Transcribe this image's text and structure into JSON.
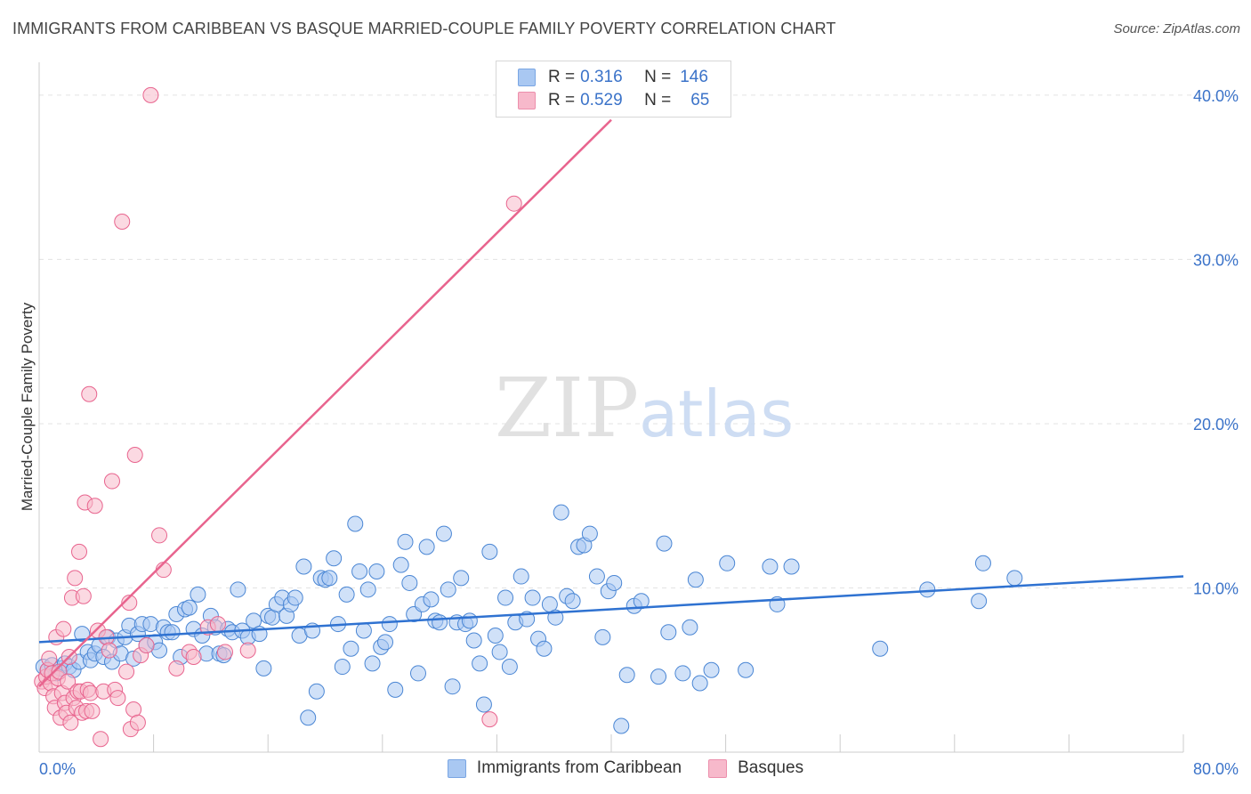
{
  "header": {
    "title": "IMMIGRANTS FROM CARIBBEAN VS BASQUE MARRIED-COUPLE FAMILY POVERTY CORRELATION CHART",
    "source": "Source: ZipAtlas.com"
  },
  "watermark": {
    "zip": "ZIP",
    "atlas": "atlas"
  },
  "legend": {
    "rows": [
      {
        "r_label": "R = ",
        "r_value": "0.316",
        "n_label": "N = ",
        "n_value": "146",
        "color": "#a9c8f2"
      },
      {
        "r_label": "R = ",
        "r_value": "0.529",
        "n_label": "N = ",
        "n_value": "65",
        "color": "#f7b9cb"
      }
    ]
  },
  "bottom_legend": {
    "items": [
      {
        "label": "Immigrants from Caribbean",
        "color": "#a9c8f2"
      },
      {
        "label": "Basques",
        "color": "#f7b9cb"
      }
    ]
  },
  "chart_data": {
    "type": "scatter",
    "title": "IMMIGRANTS FROM CARIBBEAN VS BASQUE MARRIED-COUPLE FAMILY POVERTY CORRELATION CHART",
    "xlabel": "",
    "ylabel": "Married-Couple Family Poverty",
    "xlim": [
      0,
      80
    ],
    "ylim": [
      0,
      42
    ],
    "x_tick_labels": [
      "0.0%",
      "80.0%"
    ],
    "y_ticks": [
      10,
      20,
      30,
      40
    ],
    "y_tick_labels": [
      "10.0%",
      "20.0%",
      "30.0%",
      "40.0%"
    ],
    "grid": true,
    "colors": {
      "blue": "#4a86d4",
      "blue_fill": "#a9c8f2",
      "pink": "#e8648e",
      "pink_fill": "#f7b9cb",
      "tick": "#3b73c9"
    },
    "series": [
      {
        "name": "Immigrants from Caribbean",
        "color": "#4a86d4",
        "trend": {
          "x": [
            0,
            80
          ],
          "y": [
            6.7,
            10.7
          ]
        },
        "points": [
          [
            0.3,
            5.2
          ],
          [
            0.6,
            5.0
          ],
          [
            0.9,
            5.3
          ],
          [
            1.2,
            4.8
          ],
          [
            1.5,
            5.1
          ],
          [
            1.8,
            5.4
          ],
          [
            2.1,
            5.2
          ],
          [
            2.4,
            5.0
          ],
          [
            2.8,
            5.5
          ],
          [
            3.0,
            7.2
          ],
          [
            3.4,
            6.1
          ],
          [
            3.6,
            5.6
          ],
          [
            3.9,
            6.0
          ],
          [
            4.2,
            6.5
          ],
          [
            4.5,
            5.8
          ],
          [
            4.8,
            7.0
          ],
          [
            5.1,
            5.5
          ],
          [
            5.4,
            6.8
          ],
          [
            5.7,
            6.0
          ],
          [
            6.0,
            7.0
          ],
          [
            6.3,
            7.7
          ],
          [
            6.6,
            5.7
          ],
          [
            6.9,
            7.2
          ],
          [
            7.2,
            7.8
          ],
          [
            7.5,
            6.5
          ],
          [
            7.8,
            7.8
          ],
          [
            8.1,
            6.7
          ],
          [
            8.4,
            6.2
          ],
          [
            8.7,
            7.6
          ],
          [
            9.0,
            7.3
          ],
          [
            9.3,
            7.3
          ],
          [
            9.6,
            8.4
          ],
          [
            9.9,
            5.8
          ],
          [
            10.2,
            8.7
          ],
          [
            10.5,
            8.8
          ],
          [
            10.8,
            7.5
          ],
          [
            11.1,
            9.6
          ],
          [
            11.4,
            7.1
          ],
          [
            11.7,
            6.0
          ],
          [
            12.0,
            8.3
          ],
          [
            12.3,
            7.6
          ],
          [
            12.6,
            6.0
          ],
          [
            12.9,
            5.9
          ],
          [
            13.2,
            7.5
          ],
          [
            13.5,
            7.3
          ],
          [
            13.9,
            9.9
          ],
          [
            14.2,
            7.4
          ],
          [
            14.6,
            7.0
          ],
          [
            15.0,
            8.0
          ],
          [
            15.4,
            7.2
          ],
          [
            15.7,
            5.1
          ],
          [
            16.0,
            8.3
          ],
          [
            16.3,
            8.2
          ],
          [
            16.6,
            9.0
          ],
          [
            17.0,
            9.4
          ],
          [
            17.3,
            8.3
          ],
          [
            17.6,
            9.0
          ],
          [
            17.9,
            9.4
          ],
          [
            18.2,
            7.1
          ],
          [
            18.5,
            11.3
          ],
          [
            18.8,
            2.1
          ],
          [
            19.1,
            7.4
          ],
          [
            19.4,
            3.7
          ],
          [
            19.7,
            10.6
          ],
          [
            20.0,
            10.5
          ],
          [
            20.3,
            10.6
          ],
          [
            20.6,
            11.8
          ],
          [
            20.9,
            7.8
          ],
          [
            21.2,
            5.2
          ],
          [
            21.5,
            9.6
          ],
          [
            21.8,
            6.3
          ],
          [
            22.1,
            13.9
          ],
          [
            22.4,
            11.0
          ],
          [
            22.7,
            7.4
          ],
          [
            23.0,
            9.9
          ],
          [
            23.3,
            5.4
          ],
          [
            23.6,
            11.0
          ],
          [
            23.9,
            6.4
          ],
          [
            24.2,
            6.7
          ],
          [
            24.5,
            7.8
          ],
          [
            24.9,
            3.8
          ],
          [
            25.3,
            11.4
          ],
          [
            25.6,
            12.8
          ],
          [
            25.9,
            10.3
          ],
          [
            26.2,
            8.4
          ],
          [
            26.5,
            4.8
          ],
          [
            26.8,
            9.0
          ],
          [
            27.1,
            12.5
          ],
          [
            27.4,
            9.3
          ],
          [
            27.7,
            8.0
          ],
          [
            28.0,
            7.9
          ],
          [
            28.3,
            13.3
          ],
          [
            28.6,
            9.9
          ],
          [
            28.9,
            4.0
          ],
          [
            29.2,
            7.9
          ],
          [
            29.5,
            10.6
          ],
          [
            29.8,
            7.8
          ],
          [
            30.1,
            8.0
          ],
          [
            30.4,
            6.8
          ],
          [
            30.8,
            5.4
          ],
          [
            31.1,
            2.9
          ],
          [
            31.5,
            12.2
          ],
          [
            31.9,
            7.1
          ],
          [
            32.2,
            6.1
          ],
          [
            32.6,
            9.4
          ],
          [
            32.9,
            5.2
          ],
          [
            33.3,
            7.9
          ],
          [
            33.7,
            10.7
          ],
          [
            34.1,
            8.1
          ],
          [
            34.5,
            9.4
          ],
          [
            34.9,
            6.9
          ],
          [
            35.3,
            6.3
          ],
          [
            35.7,
            9.0
          ],
          [
            36.1,
            8.2
          ],
          [
            36.5,
            14.6
          ],
          [
            36.9,
            9.5
          ],
          [
            37.3,
            9.2
          ],
          [
            37.7,
            12.5
          ],
          [
            38.1,
            12.6
          ],
          [
            38.5,
            13.3
          ],
          [
            39.0,
            10.7
          ],
          [
            39.4,
            7.0
          ],
          [
            39.8,
            9.8
          ],
          [
            40.2,
            10.3
          ],
          [
            40.7,
            1.6
          ],
          [
            41.1,
            4.7
          ],
          [
            41.6,
            8.9
          ],
          [
            42.1,
            9.2
          ],
          [
            43.3,
            4.6
          ],
          [
            43.7,
            12.7
          ],
          [
            44.0,
            7.3
          ],
          [
            45.0,
            4.8
          ],
          [
            45.5,
            7.6
          ],
          [
            45.9,
            10.5
          ],
          [
            46.2,
            4.2
          ],
          [
            47.0,
            5.0
          ],
          [
            48.1,
            11.5
          ],
          [
            49.4,
            5.0
          ],
          [
            51.1,
            11.3
          ],
          [
            51.6,
            9.0
          ],
          [
            52.6,
            11.3
          ],
          [
            58.8,
            6.3
          ],
          [
            62.1,
            9.9
          ],
          [
            65.7,
            9.2
          ],
          [
            66.0,
            11.5
          ],
          [
            68.2,
            10.6
          ]
        ]
      },
      {
        "name": "Basques",
        "color": "#e8648e",
        "trend": {
          "x": [
            0,
            40
          ],
          "y": [
            4.0,
            38.5
          ]
        },
        "points": [
          [
            0.2,
            4.3
          ],
          [
            0.4,
            3.9
          ],
          [
            0.5,
            4.6
          ],
          [
            0.6,
            5.0
          ],
          [
            0.7,
            5.7
          ],
          [
            0.8,
            4.2
          ],
          [
            0.9,
            4.8
          ],
          [
            1.0,
            3.4
          ],
          [
            1.1,
            2.7
          ],
          [
            1.2,
            7.0
          ],
          [
            1.3,
            4.5
          ],
          [
            1.4,
            4.9
          ],
          [
            1.5,
            2.1
          ],
          [
            1.6,
            3.6
          ],
          [
            1.7,
            7.5
          ],
          [
            1.8,
            3.0
          ],
          [
            1.9,
            2.4
          ],
          [
            2.0,
            4.3
          ],
          [
            2.1,
            5.8
          ],
          [
            2.2,
            1.8
          ],
          [
            2.3,
            9.4
          ],
          [
            2.4,
            3.3
          ],
          [
            2.5,
            10.6
          ],
          [
            2.6,
            2.7
          ],
          [
            2.7,
            3.7
          ],
          [
            2.8,
            12.2
          ],
          [
            2.9,
            3.7
          ],
          [
            3.0,
            2.4
          ],
          [
            3.1,
            9.5
          ],
          [
            3.2,
            15.2
          ],
          [
            3.3,
            2.5
          ],
          [
            3.4,
            3.8
          ],
          [
            3.5,
            21.8
          ],
          [
            3.6,
            3.6
          ],
          [
            3.7,
            2.5
          ],
          [
            3.9,
            15.0
          ],
          [
            4.1,
            7.4
          ],
          [
            4.3,
            0.8
          ],
          [
            4.5,
            3.7
          ],
          [
            4.7,
            7.0
          ],
          [
            4.9,
            6.2
          ],
          [
            5.1,
            16.5
          ],
          [
            5.3,
            3.8
          ],
          [
            5.5,
            3.3
          ],
          [
            5.8,
            32.3
          ],
          [
            6.1,
            4.9
          ],
          [
            6.3,
            9.1
          ],
          [
            6.4,
            1.4
          ],
          [
            6.6,
            2.6
          ],
          [
            6.7,
            18.1
          ],
          [
            6.9,
            1.8
          ],
          [
            7.1,
            5.9
          ],
          [
            7.5,
            6.5
          ],
          [
            7.8,
            40.0
          ],
          [
            8.4,
            13.2
          ],
          [
            8.7,
            11.1
          ],
          [
            9.6,
            5.1
          ],
          [
            10.5,
            6.1
          ],
          [
            10.8,
            5.8
          ],
          [
            11.8,
            7.6
          ],
          [
            12.5,
            7.8
          ],
          [
            13.0,
            6.1
          ],
          [
            14.6,
            6.2
          ],
          [
            31.5,
            2.0
          ],
          [
            33.2,
            33.4
          ]
        ]
      }
    ]
  }
}
